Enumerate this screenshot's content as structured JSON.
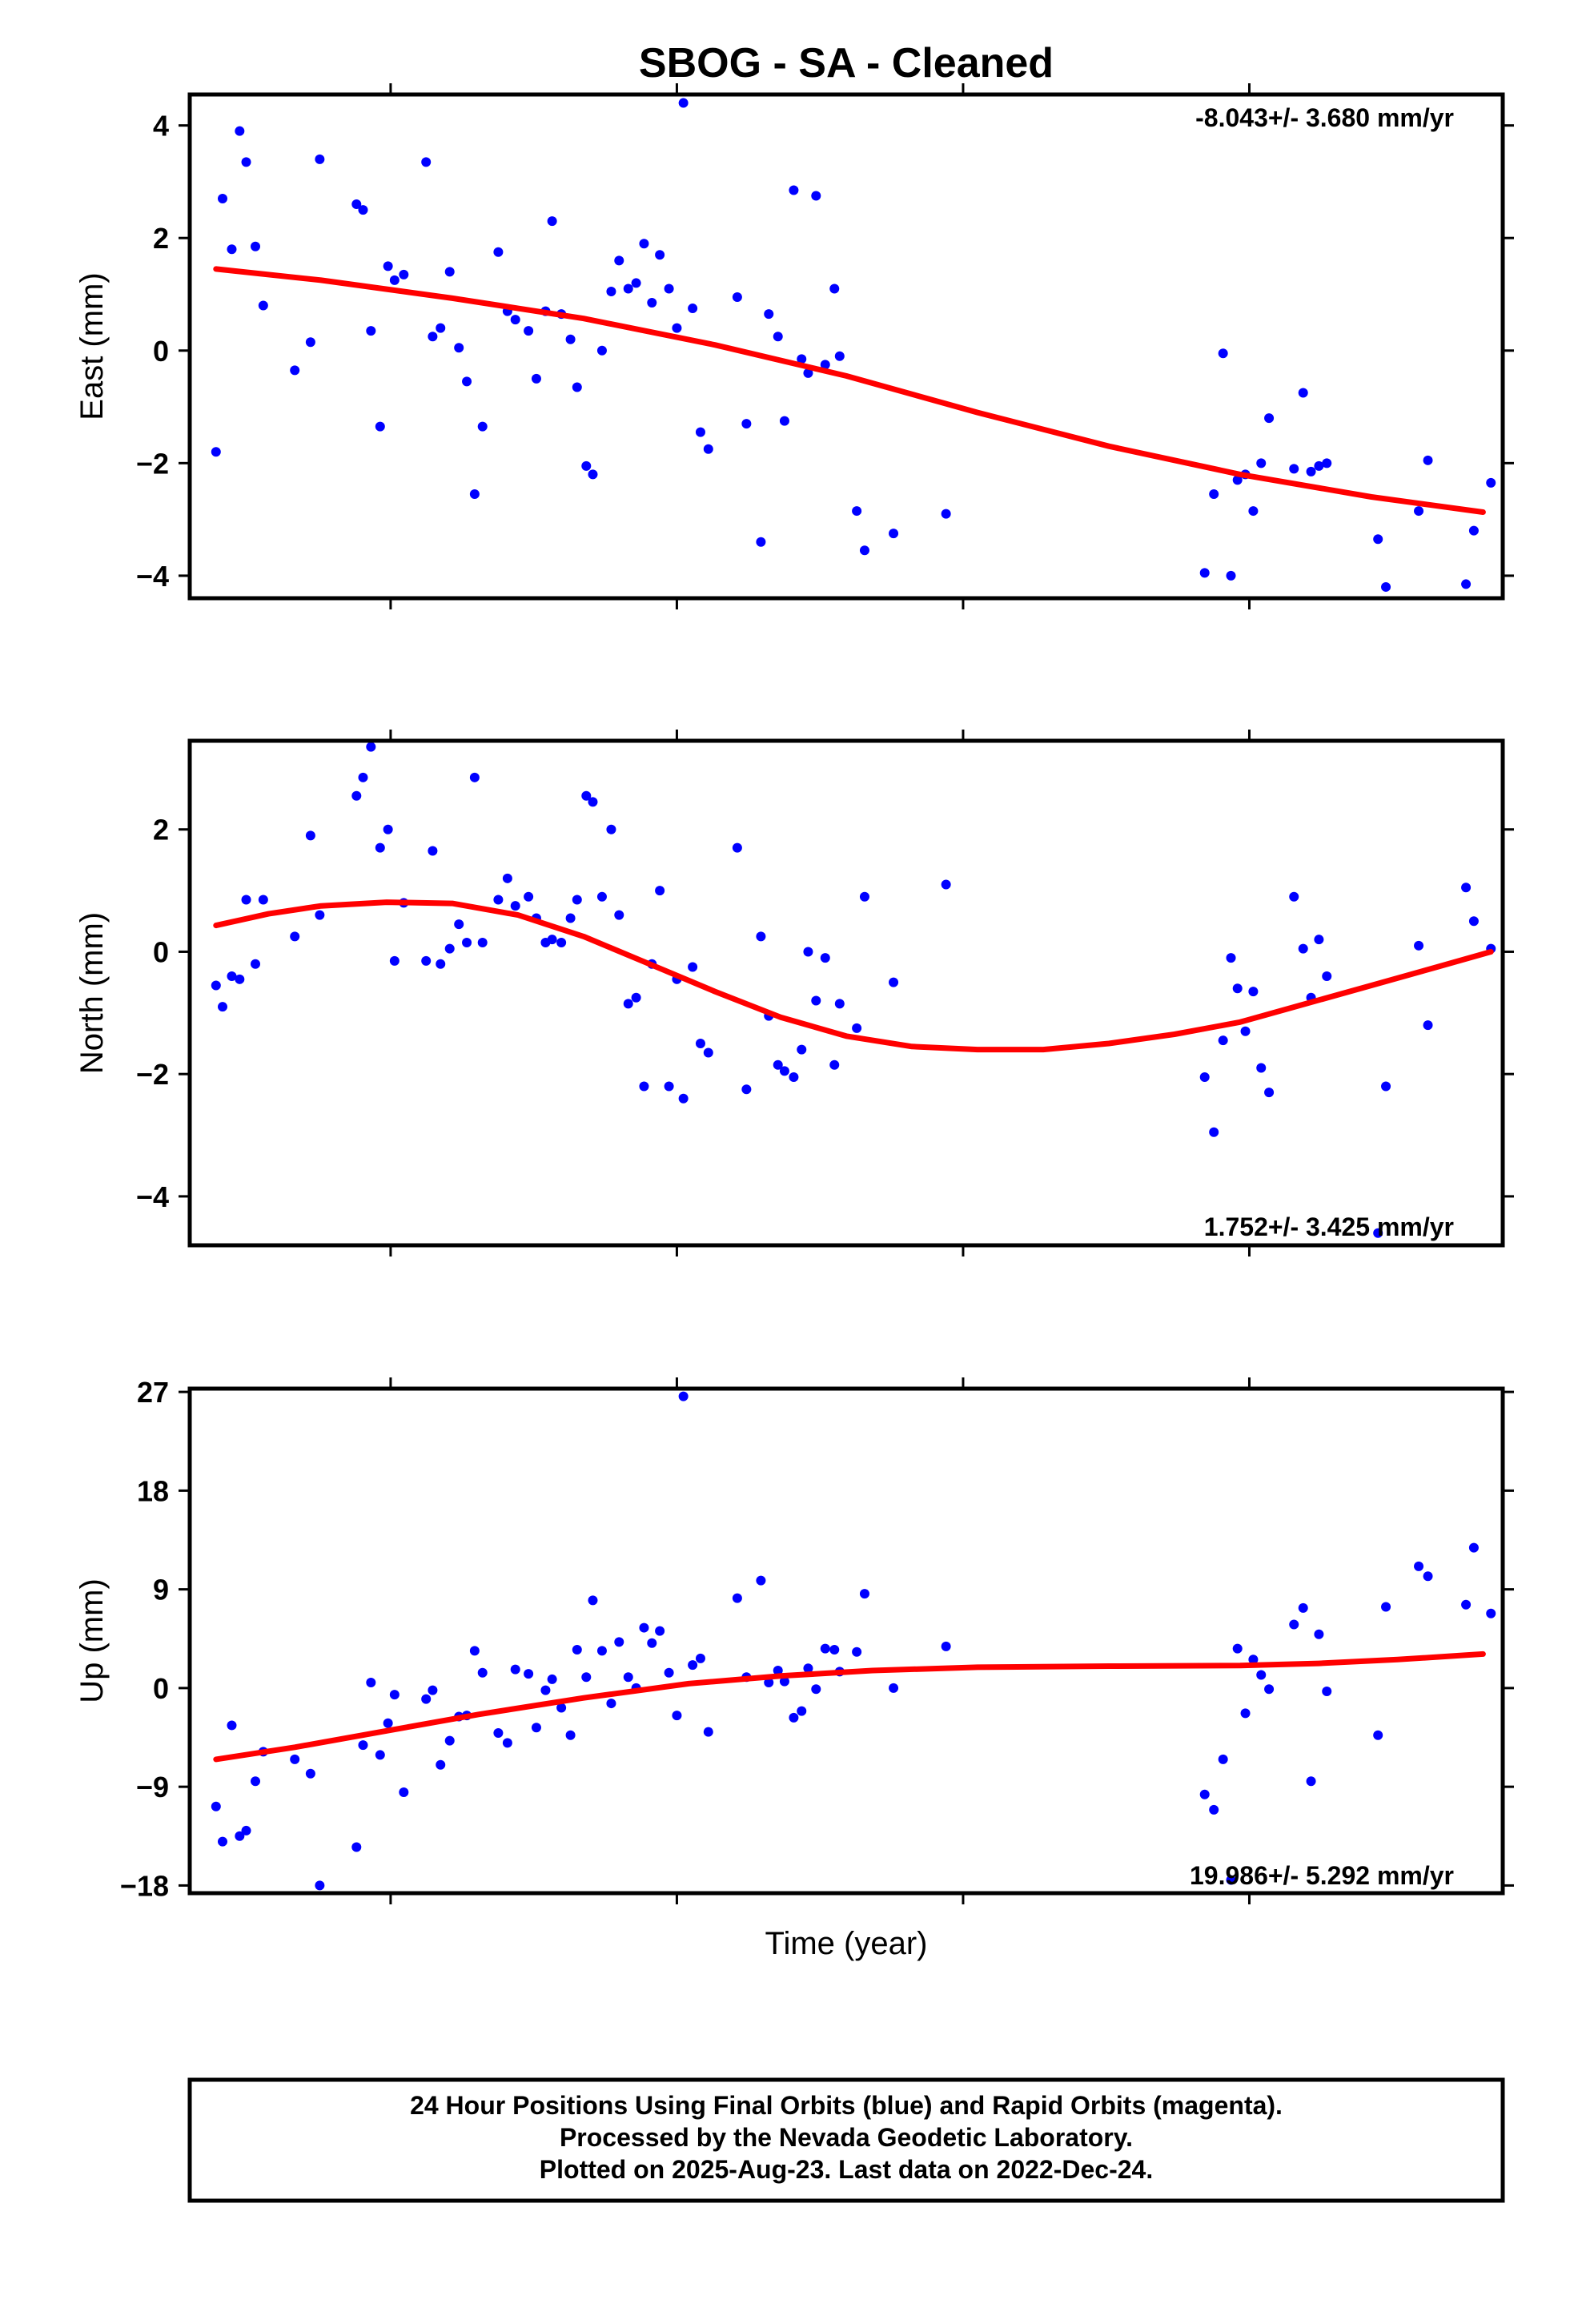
{
  "title": "SBOG  - SA - Cleaned",
  "xlabel": "Time (year)",
  "footer": {
    "line1": "24 Hour Positions Using Final Orbits (blue) and Rapid Orbits (magenta).",
    "line2": "Processed by the Nevada Geodetic Laboratory.",
    "line3": "Plotted on 2025-Aug-23. Last data on 2022-Dec-24."
  },
  "colors": {
    "points": "#0000ff",
    "fit": "#ff0000",
    "frame": "#000000"
  },
  "chart_data": [
    {
      "type": "scatter",
      "ylabel": "East (mm)",
      "rate_label": "-8.043+/- 3.680 mm/yr",
      "ylim": [
        -4.4,
        4.55
      ],
      "xlim": [
        0,
        100
      ],
      "yticks": [
        {
          "v": -4,
          "label": "−4"
        },
        {
          "v": -2,
          "label": "−2"
        },
        {
          "v": 0,
          "label": "0"
        },
        {
          "v": 2,
          "label": "2"
        },
        {
          "v": 4,
          "label": "4"
        }
      ],
      "points": [
        [
          2,
          -1.8
        ],
        [
          2.5,
          2.7
        ],
        [
          3.2,
          1.8
        ],
        [
          3.8,
          3.9
        ],
        [
          4.3,
          3.35
        ],
        [
          5,
          1.85
        ],
        [
          5.6,
          0.8
        ],
        [
          8,
          -0.35
        ],
        [
          9.2,
          0.15
        ],
        [
          9.9,
          3.4
        ],
        [
          12.7,
          2.6
        ],
        [
          13.2,
          2.5
        ],
        [
          13.8,
          0.35
        ],
        [
          14.5,
          -1.35
        ],
        [
          15.1,
          1.5
        ],
        [
          15.6,
          1.25
        ],
        [
          16.3,
          1.35
        ],
        [
          18,
          3.35
        ],
        [
          18.5,
          0.25
        ],
        [
          19.1,
          0.4
        ],
        [
          19.8,
          1.4
        ],
        [
          20.5,
          0.05
        ],
        [
          21.1,
          -0.55
        ],
        [
          21.7,
          -2.55
        ],
        [
          22.3,
          -1.35
        ],
        [
          23.5,
          1.75
        ],
        [
          24.2,
          0.7
        ],
        [
          24.8,
          0.55
        ],
        [
          25.8,
          0.35
        ],
        [
          26.4,
          -0.5
        ],
        [
          27.1,
          0.7
        ],
        [
          27.6,
          2.3
        ],
        [
          28.3,
          0.65
        ],
        [
          29,
          0.2
        ],
        [
          29.5,
          -0.65
        ],
        [
          30.2,
          -2.05
        ],
        [
          30.7,
          -2.2
        ],
        [
          31.4,
          0.0
        ],
        [
          32.1,
          1.05
        ],
        [
          32.7,
          1.6
        ],
        [
          33.4,
          1.1
        ],
        [
          34,
          1.2
        ],
        [
          34.6,
          1.9
        ],
        [
          35.2,
          0.85
        ],
        [
          35.8,
          1.7
        ],
        [
          36.5,
          1.1
        ],
        [
          37.1,
          0.4
        ],
        [
          37.6,
          4.4
        ],
        [
          38.3,
          0.75
        ],
        [
          38.9,
          -1.45
        ],
        [
          39.5,
          -1.75
        ],
        [
          41.7,
          0.95
        ],
        [
          42.4,
          -1.3
        ],
        [
          43.5,
          -3.4
        ],
        [
          44.1,
          0.65
        ],
        [
          44.8,
          0.25
        ],
        [
          45.3,
          -1.25
        ],
        [
          46,
          2.85
        ],
        [
          46.6,
          -0.15
        ],
        [
          47.1,
          -0.4
        ],
        [
          47.7,
          2.75
        ],
        [
          48.4,
          -0.25
        ],
        [
          49.1,
          1.1
        ],
        [
          49.5,
          -0.1
        ],
        [
          50.8,
          -2.85
        ],
        [
          51.4,
          -3.55
        ],
        [
          53.6,
          -3.25
        ],
        [
          57.6,
          -2.9
        ],
        [
          77.3,
          -3.95
        ],
        [
          78,
          -2.55
        ],
        [
          78.7,
          -0.05
        ],
        [
          79.3,
          -4.0
        ],
        [
          79.8,
          -2.3
        ],
        [
          80.4,
          -2.2
        ],
        [
          81,
          -2.85
        ],
        [
          81.6,
          -2.0
        ],
        [
          82.2,
          -1.2
        ],
        [
          84.1,
          -2.1
        ],
        [
          84.8,
          -0.75
        ],
        [
          85.4,
          -2.15
        ],
        [
          86,
          -2.05
        ],
        [
          86.6,
          -2.0
        ],
        [
          90.5,
          -3.35
        ],
        [
          91.1,
          -4.2
        ],
        [
          93.6,
          -2.85
        ],
        [
          94.3,
          -1.95
        ],
        [
          97.2,
          -4.15
        ],
        [
          97.8,
          -3.2
        ],
        [
          99.1,
          -2.35
        ]
      ],
      "fit": [
        [
          2,
          1.45
        ],
        [
          10,
          1.25
        ],
        [
          20,
          0.93
        ],
        [
          30,
          0.57
        ],
        [
          40,
          0.1
        ],
        [
          50,
          -0.45
        ],
        [
          60,
          -1.1
        ],
        [
          70,
          -1.7
        ],
        [
          80,
          -2.2
        ],
        [
          90,
          -2.6
        ],
        [
          98.5,
          -2.87
        ]
      ]
    },
    {
      "type": "scatter",
      "ylabel": "North (mm)",
      "rate_label": "1.752+/- 3.425 mm/yr",
      "ylim": [
        -4.8,
        3.45
      ],
      "xlim": [
        0,
        100
      ],
      "yticks": [
        {
          "v": -4,
          "label": "−4"
        },
        {
          "v": -2,
          "label": "−2"
        },
        {
          "v": 0,
          "label": "0"
        },
        {
          "v": 2,
          "label": "2"
        }
      ],
      "points": [
        [
          2,
          -0.55
        ],
        [
          2.5,
          -0.9
        ],
        [
          3.2,
          -0.4
        ],
        [
          3.8,
          -0.45
        ],
        [
          4.3,
          0.85
        ],
        [
          5,
          -0.2
        ],
        [
          5.6,
          0.85
        ],
        [
          8,
          0.25
        ],
        [
          9.2,
          1.9
        ],
        [
          9.9,
          0.6
        ],
        [
          12.7,
          2.55
        ],
        [
          13.2,
          2.85
        ],
        [
          13.8,
          3.35
        ],
        [
          14.5,
          1.7
        ],
        [
          15.1,
          2.0
        ],
        [
          15.6,
          -0.15
        ],
        [
          16.3,
          0.8
        ],
        [
          18,
          -0.15
        ],
        [
          18.5,
          1.65
        ],
        [
          19.1,
          -0.2
        ],
        [
          19.8,
          0.05
        ],
        [
          20.5,
          0.45
        ],
        [
          21.1,
          0.15
        ],
        [
          21.7,
          2.85
        ],
        [
          22.3,
          0.15
        ],
        [
          23.5,
          0.85
        ],
        [
          24.2,
          1.2
        ],
        [
          24.8,
          0.75
        ],
        [
          25.8,
          0.9
        ],
        [
          26.4,
          0.55
        ],
        [
          27.1,
          0.15
        ],
        [
          27.6,
          0.2
        ],
        [
          28.3,
          0.15
        ],
        [
          29,
          0.55
        ],
        [
          29.5,
          0.85
        ],
        [
          30.2,
          2.55
        ],
        [
          30.7,
          2.45
        ],
        [
          31.4,
          0.9
        ],
        [
          32.1,
          2.0
        ],
        [
          32.7,
          0.6
        ],
        [
          33.4,
          -0.85
        ],
        [
          34,
          -0.75
        ],
        [
          34.6,
          -2.2
        ],
        [
          35.2,
          -0.2
        ],
        [
          35.8,
          1.0
        ],
        [
          36.5,
          -2.2
        ],
        [
          37.1,
          -0.45
        ],
        [
          37.6,
          -2.4
        ],
        [
          38.3,
          -0.25
        ],
        [
          38.9,
          -1.5
        ],
        [
          39.5,
          -1.65
        ],
        [
          41.7,
          1.7
        ],
        [
          42.4,
          -2.25
        ],
        [
          43.5,
          0.25
        ],
        [
          44.1,
          -1.05
        ],
        [
          44.8,
          -1.85
        ],
        [
          45.3,
          -1.95
        ],
        [
          46,
          -2.05
        ],
        [
          46.6,
          -1.6
        ],
        [
          47.1,
          0.0
        ],
        [
          47.7,
          -0.8
        ],
        [
          48.4,
          -0.1
        ],
        [
          49.1,
          -1.85
        ],
        [
          49.5,
          -0.85
        ],
        [
          50.8,
          -1.25
        ],
        [
          51.4,
          0.9
        ],
        [
          53.6,
          -0.5
        ],
        [
          57.6,
          1.1
        ],
        [
          77.3,
          -2.05
        ],
        [
          78,
          -2.95
        ],
        [
          78.7,
          -1.45
        ],
        [
          79.3,
          -0.1
        ],
        [
          79.8,
          -0.6
        ],
        [
          80.4,
          -1.3
        ],
        [
          81,
          -0.65
        ],
        [
          81.6,
          -1.9
        ],
        [
          82.2,
          -2.3
        ],
        [
          84.1,
          0.9
        ],
        [
          84.8,
          0.05
        ],
        [
          85.4,
          -0.75
        ],
        [
          86,
          0.2
        ],
        [
          86.6,
          -0.4
        ],
        [
          90.5,
          -4.6
        ],
        [
          91.1,
          -2.2
        ],
        [
          93.6,
          0.1
        ],
        [
          94.3,
          -1.2
        ],
        [
          97.2,
          1.05
        ],
        [
          97.8,
          0.5
        ],
        [
          99.1,
          0.05
        ]
      ],
      "fit": [
        [
          2,
          0.43
        ],
        [
          6,
          0.62
        ],
        [
          10,
          0.75
        ],
        [
          15,
          0.81
        ],
        [
          20,
          0.79
        ],
        [
          25,
          0.6
        ],
        [
          30,
          0.25
        ],
        [
          35,
          -0.2
        ],
        [
          40,
          -0.65
        ],
        [
          45,
          -1.07
        ],
        [
          50,
          -1.38
        ],
        [
          55,
          -1.55
        ],
        [
          60,
          -1.6
        ],
        [
          65,
          -1.6
        ],
        [
          70,
          -1.5
        ],
        [
          75,
          -1.35
        ],
        [
          80,
          -1.15
        ],
        [
          85,
          -0.85
        ],
        [
          90,
          -0.55
        ],
        [
          95,
          -0.25
        ],
        [
          99.1,
          0.0
        ]
      ]
    },
    {
      "type": "scatter",
      "ylabel": "Up (mm)",
      "rate_label": "19.986+/- 5.292 mm/yr",
      "ylim": [
        -18.7,
        27.3
      ],
      "xlim": [
        0,
        100
      ],
      "yticks": [
        {
          "v": -18,
          "label": "−18"
        },
        {
          "v": -9,
          "label": "−9"
        },
        {
          "v": 0,
          "label": "0"
        },
        {
          "v": 9,
          "label": "9"
        },
        {
          "v": 18,
          "label": "18"
        },
        {
          "v": 27,
          "label": "27"
        }
      ],
      "points": [
        [
          2,
          -10.8
        ],
        [
          2.5,
          -14.0
        ],
        [
          3.2,
          -3.4
        ],
        [
          3.8,
          -13.5
        ],
        [
          4.3,
          -13.0
        ],
        [
          5,
          -8.5
        ],
        [
          5.6,
          -5.8
        ],
        [
          8,
          -6.5
        ],
        [
          9.2,
          -7.8
        ],
        [
          9.9,
          -18.0
        ],
        [
          12.7,
          -14.5
        ],
        [
          13.2,
          -5.2
        ],
        [
          13.8,
          0.5
        ],
        [
          14.5,
          -6.1
        ],
        [
          15.1,
          -3.2
        ],
        [
          15.6,
          -0.6
        ],
        [
          16.3,
          -9.5
        ],
        [
          18,
          -1.0
        ],
        [
          18.5,
          -0.2
        ],
        [
          19.1,
          -7.0
        ],
        [
          19.8,
          -4.8
        ],
        [
          20.5,
          -2.6
        ],
        [
          21.1,
          -2.5
        ],
        [
          21.7,
          3.4
        ],
        [
          22.3,
          1.4
        ],
        [
          23.5,
          -4.1
        ],
        [
          24.2,
          -5.0
        ],
        [
          24.8,
          1.7
        ],
        [
          25.8,
          1.3
        ],
        [
          26.4,
          -3.6
        ],
        [
          27.1,
          -0.2
        ],
        [
          27.6,
          0.8
        ],
        [
          28.3,
          -1.8
        ],
        [
          29,
          -4.3
        ],
        [
          29.5,
          3.5
        ],
        [
          30.2,
          1.0
        ],
        [
          30.7,
          8.0
        ],
        [
          31.4,
          3.4
        ],
        [
          32.1,
          -1.4
        ],
        [
          32.7,
          4.2
        ],
        [
          33.4,
          1.0
        ],
        [
          34,
          0.0
        ],
        [
          34.6,
          5.5
        ],
        [
          35.2,
          4.1
        ],
        [
          35.8,
          5.2
        ],
        [
          36.5,
          1.4
        ],
        [
          37.1,
          -2.5
        ],
        [
          37.6,
          26.6
        ],
        [
          38.3,
          2.1
        ],
        [
          38.9,
          2.7
        ],
        [
          39.5,
          -4.0
        ],
        [
          41.7,
          8.2
        ],
        [
          42.4,
          1.0
        ],
        [
          43.5,
          9.8
        ],
        [
          44.1,
          0.5
        ],
        [
          44.8,
          1.6
        ],
        [
          45.3,
          0.6
        ],
        [
          46,
          -2.7
        ],
        [
          46.6,
          -2.1
        ],
        [
          47.1,
          1.8
        ],
        [
          47.7,
          -0.1
        ],
        [
          48.4,
          3.6
        ],
        [
          49.1,
          3.5
        ],
        [
          49.5,
          1.5
        ],
        [
          50.8,
          3.3
        ],
        [
          51.4,
          8.6
        ],
        [
          53.6,
          0.0
        ],
        [
          57.6,
          3.8
        ],
        [
          77.3,
          -9.7
        ],
        [
          78,
          -11.1
        ],
        [
          78.7,
          -6.5
        ],
        [
          79.3,
          -17.5
        ],
        [
          79.8,
          3.6
        ],
        [
          80.4,
          -2.3
        ],
        [
          81,
          2.6
        ],
        [
          81.6,
          1.2
        ],
        [
          82.2,
          -0.1
        ],
        [
          84.1,
          5.8
        ],
        [
          84.8,
          7.3
        ],
        [
          85.4,
          -8.5
        ],
        [
          86,
          4.9
        ],
        [
          86.6,
          -0.3
        ],
        [
          90.5,
          -4.3
        ],
        [
          91.1,
          7.4
        ],
        [
          93.6,
          11.1
        ],
        [
          94.3,
          10.2
        ],
        [
          97.2,
          7.6
        ],
        [
          97.8,
          12.8
        ],
        [
          99.1,
          6.8
        ]
      ],
      "fit": [
        [
          2,
          -6.5
        ],
        [
          8,
          -5.4
        ],
        [
          15,
          -3.9
        ],
        [
          22,
          -2.4
        ],
        [
          30,
          -0.9
        ],
        [
          38,
          0.4
        ],
        [
          45,
          1.1
        ],
        [
          52,
          1.6
        ],
        [
          60,
          1.9
        ],
        [
          70,
          2.0
        ],
        [
          80,
          2.05
        ],
        [
          86,
          2.25
        ],
        [
          92,
          2.6
        ],
        [
          98.5,
          3.1
        ]
      ]
    }
  ]
}
